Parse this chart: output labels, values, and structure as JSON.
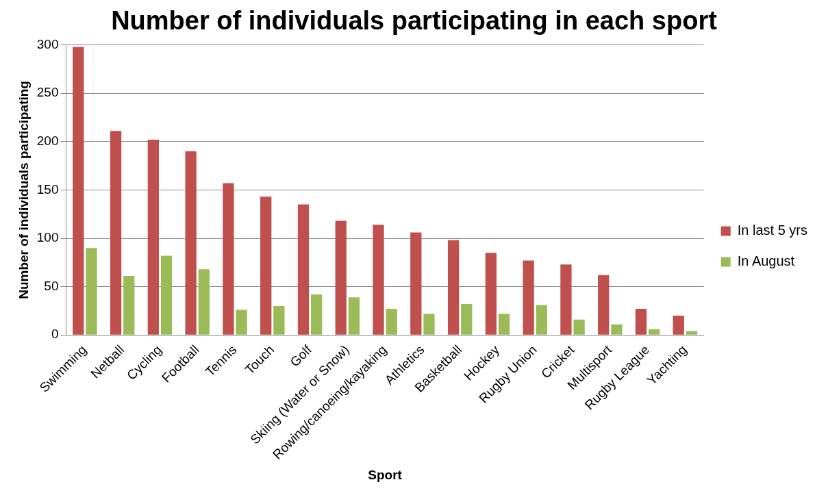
{
  "chart_data": {
    "type": "bar",
    "title": "Number of individuals participating in each sport",
    "xlabel": "Sport",
    "ylabel": "Number of individuals participating",
    "categories": [
      "Swimming",
      "Netball",
      "Cycling",
      "Football",
      "Tennis",
      "Touch",
      "Golf",
      "Skiing (Water or Snow)",
      "Rowing/canoeing/kayaking",
      "Athletics",
      "Basketball",
      "Hockey",
      "Rugby Union",
      "Cricket",
      "Multisport",
      "Rugby League",
      "Yachting"
    ],
    "series": [
      {
        "name": "In last 5 yrs",
        "color": "#c0504d",
        "values": [
          298,
          211,
          202,
          190,
          157,
          143,
          135,
          118,
          114,
          106,
          98,
          85,
          77,
          73,
          62,
          27,
          20
        ]
      },
      {
        "name": "In August",
        "color": "#9bbb59",
        "values": [
          90,
          61,
          82,
          68,
          26,
          30,
          42,
          39,
          27,
          22,
          32,
          22,
          31,
          16,
          11,
          6,
          4
        ]
      }
    ],
    "ylim": [
      0,
      300
    ],
    "yticks": [
      0,
      50,
      100,
      150,
      200,
      250,
      300
    ],
    "grid": "y",
    "legend": "right"
  }
}
